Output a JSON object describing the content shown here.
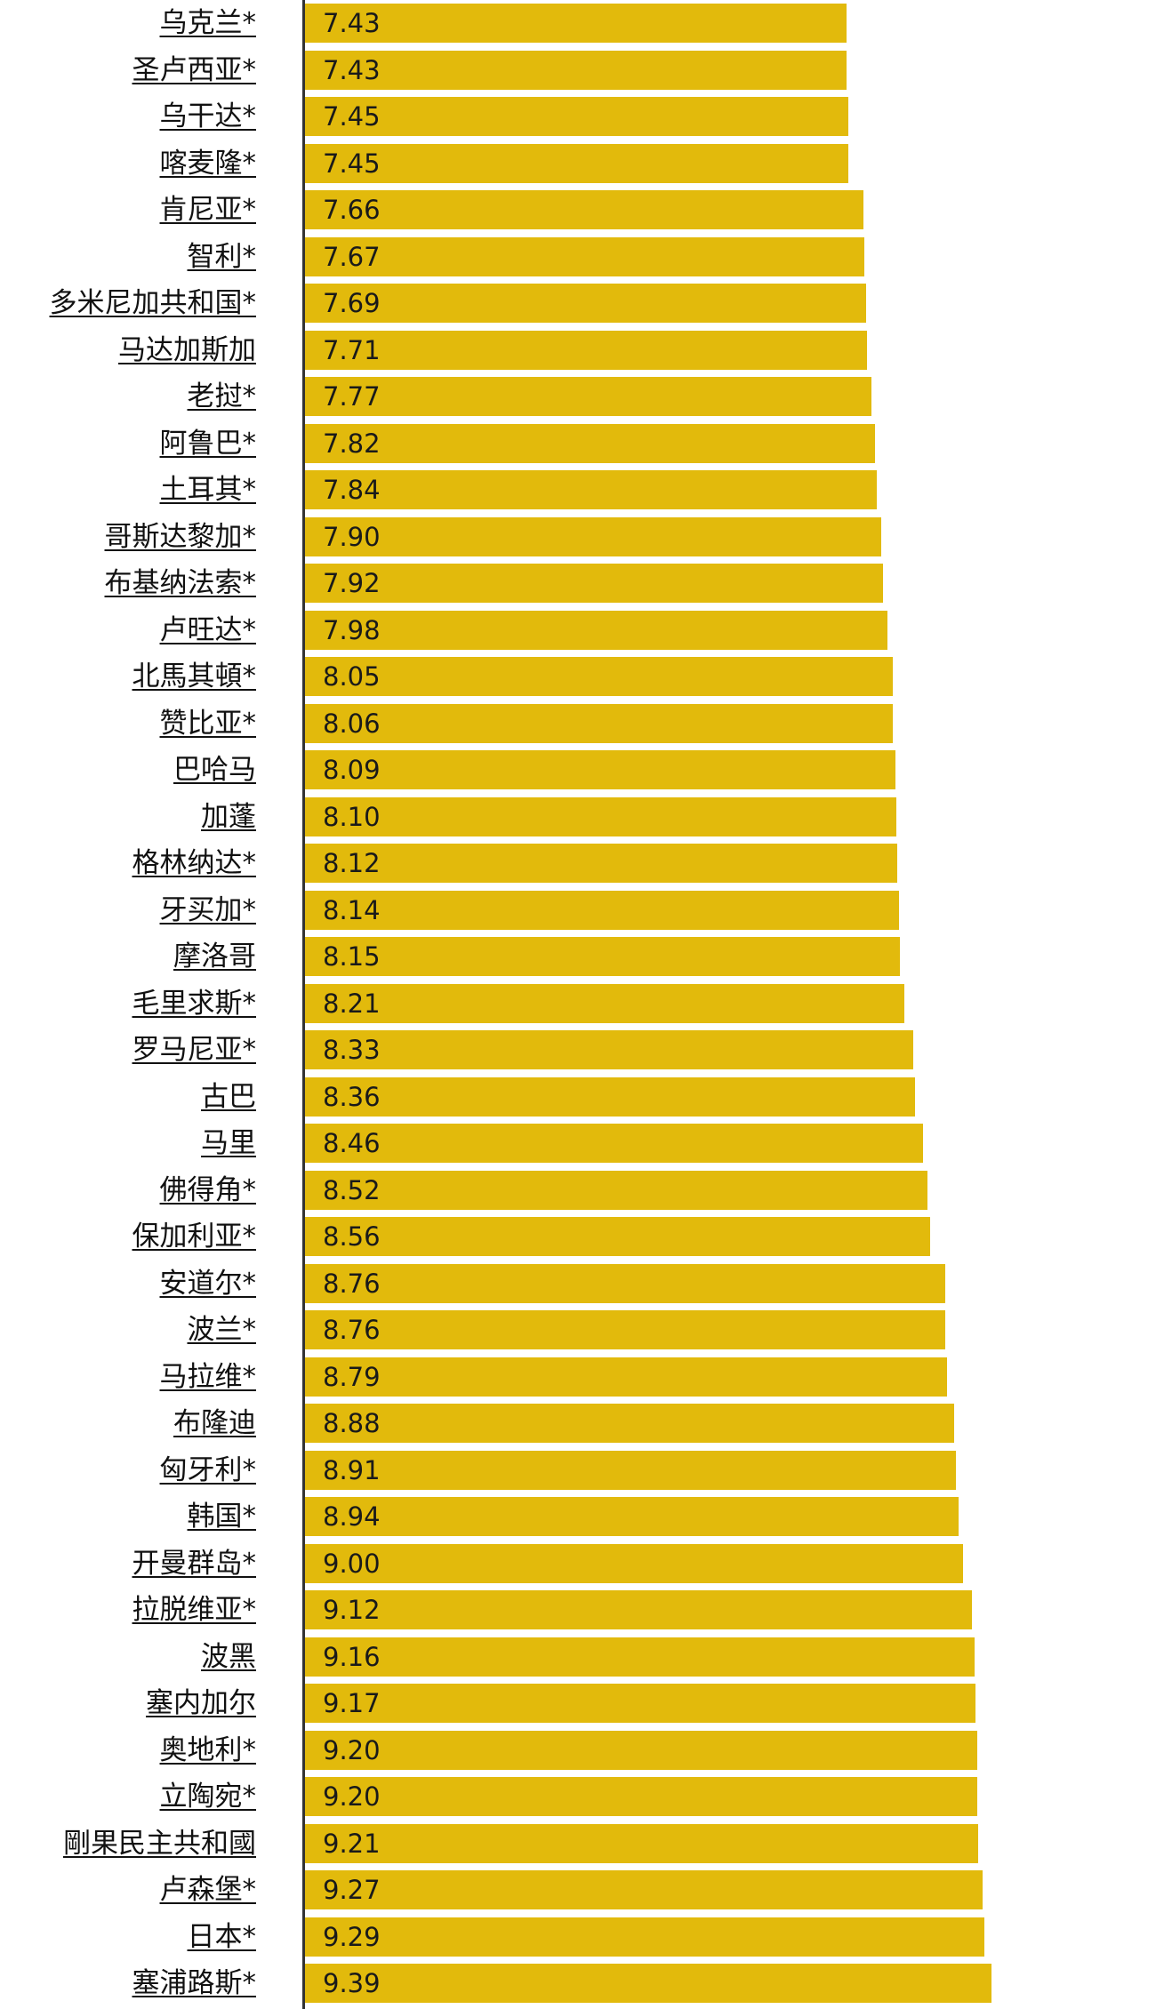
{
  "colors": {
    "bar": "#E2BA0C",
    "axis": "#333333"
  },
  "chart_data": {
    "type": "bar",
    "orientation": "horizontal",
    "title": "",
    "xlabel": "",
    "ylabel": "",
    "xlim": [
      0,
      9.39
    ],
    "grid": false,
    "categories": [
      "乌克兰*",
      "圣卢西亚*",
      "乌干达*",
      "喀麦隆*",
      "肯尼亚*",
      "智利*",
      "多米尼加共和国*",
      "马达加斯加 ",
      "老挝*",
      "阿鲁巴*",
      "土耳其*",
      "哥斯达黎加*",
      "布基纳法索*",
      "卢旺达*",
      "北馬其頓*",
      "赞比亚*",
      "巴哈马 ",
      "加蓬 ",
      "格林纳达*",
      "牙买加*",
      "摩洛哥 ",
      "毛里求斯*",
      "罗马尼亚*",
      "古巴 ",
      "马里 ",
      "佛得角*",
      "保加利亚*",
      "安道尔*",
      "波兰*",
      "马拉维*",
      "布隆迪 ",
      "匈牙利*",
      "韩国*",
      "开曼群岛*",
      "拉脱维亚*",
      "波黑 ",
      "塞内加尔 ",
      "奥地利*",
      "立陶宛*",
      "剛果民主共和國 ",
      "卢森堡*",
      "日本*",
      "塞浦路斯*"
    ],
    "values": [
      7.43,
      7.43,
      7.45,
      7.45,
      7.66,
      7.67,
      7.69,
      7.71,
      7.77,
      7.82,
      7.84,
      7.9,
      7.92,
      7.98,
      8.05,
      8.06,
      8.09,
      8.1,
      8.12,
      8.14,
      8.15,
      8.21,
      8.33,
      8.36,
      8.46,
      8.52,
      8.56,
      8.76,
      8.76,
      8.79,
      8.88,
      8.91,
      8.94,
      9.0,
      9.12,
      9.16,
      9.17,
      9.2,
      9.2,
      9.21,
      9.27,
      9.29,
      9.39
    ],
    "value_labels": [
      "7.43",
      "7.43",
      "7.45",
      "7.45",
      "7.66",
      "7.67",
      "7.69",
      "7.71",
      "7.77",
      "7.82",
      "7.84",
      "7.90",
      "7.92",
      "7.98",
      "8.05",
      "8.06",
      "8.09",
      "8.10",
      "8.12",
      "8.14",
      "8.15",
      "8.21",
      "8.33",
      "8.36",
      "8.46",
      "8.52",
      "8.56",
      "8.76",
      "8.76",
      "8.79",
      "8.88",
      "8.91",
      "8.94",
      "9.00",
      "9.12",
      "9.16",
      "9.17",
      "9.20",
      "9.20",
      "9.21",
      "9.27",
      "9.29",
      "9.39"
    ]
  }
}
